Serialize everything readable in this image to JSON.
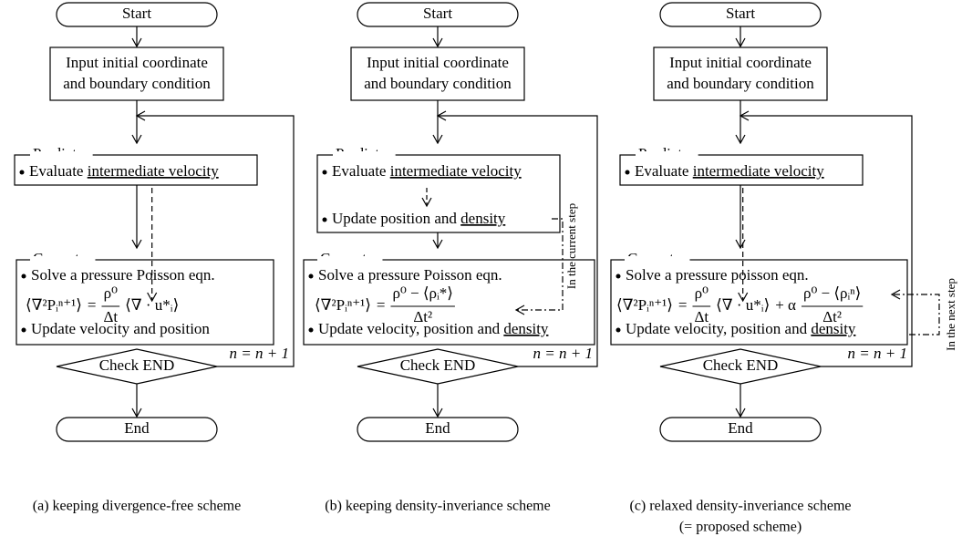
{
  "columns": [
    {
      "start": "Start",
      "input": [
        "Input initial coordinate",
        "and boundary condition"
      ],
      "predictor": {
        "label": "Predictor",
        "items": [
          {
            "text": "Evaluate ",
            "underline": "intermediate velocity"
          }
        ]
      },
      "corrector": {
        "label": "Corrector",
        "items": [
          {
            "text": "Solve a pressure Poisson eqn."
          },
          {
            "text": "Update velocity and position"
          }
        ],
        "equation": {
          "lhs": "⟨∇²Pᵢⁿ⁺¹⟩",
          "eq": "=",
          "terms": [
            {
              "num": "ρ⁰",
              "den": "Δt"
            },
            {
              "text": "⟨∇ · u*ᵢ⟩"
            }
          ]
        }
      },
      "check": "Check END",
      "loop": "n = n + 1",
      "end": "End",
      "caption": [
        "(a) keeping divergence-free scheme"
      ]
    },
    {
      "start": "Start",
      "input": [
        "Input initial coordinate",
        "and boundary condition"
      ],
      "predictor": {
        "label": "Predictor",
        "items": [
          {
            "text": "Evaluate ",
            "underline": "intermediate velocity"
          },
          {
            "text": "Update position and ",
            "underline": "density"
          }
        ]
      },
      "corrector": {
        "label": "Corrector",
        "items": [
          {
            "text": "Solve a pressure Poisson eqn."
          },
          {
            "text": "Update velocity, position and ",
            "underline": "density"
          }
        ],
        "equation": {
          "lhs": "⟨∇²Pᵢⁿ⁺¹⟩",
          "eq": "=",
          "terms": [
            {
              "num": "ρ⁰ − ⟨ρᵢ*⟩",
              "den": "Δt²"
            }
          ]
        }
      },
      "check": "Check END",
      "loop": "n = n + 1",
      "end": "End",
      "note": "In the current step",
      "caption": [
        "(b) keeping density-inveriance scheme"
      ]
    },
    {
      "start": "Start",
      "input": [
        "Input initial coordinate",
        "and boundary condition"
      ],
      "predictor": {
        "label": "Predictor",
        "items": [
          {
            "text": "Evaluate ",
            "underline": "intermediate velocity"
          }
        ]
      },
      "corrector": {
        "label": "Corrector",
        "items": [
          {
            "text": "Solve a pressure poisson eqn."
          },
          {
            "text": "Update velocity, position and ",
            "underline": "density"
          }
        ],
        "equation": {
          "lhs": "⟨∇²Pᵢⁿ⁺¹⟩",
          "eq": "=",
          "terms": [
            {
              "num": "ρ⁰",
              "den": "Δt"
            },
            {
              "text": "⟨∇ · u*ᵢ⟩"
            },
            {
              "text": "+ α"
            },
            {
              "num": "ρ⁰ − ⟨ρᵢⁿ⟩",
              "den": "Δt²"
            }
          ]
        }
      },
      "check": "Check END",
      "loop": "n = n + 1",
      "end": "End",
      "note": "In the next step",
      "caption": [
        "(c) relaxed density-inveriance scheme",
        "(= proposed scheme)"
      ]
    }
  ]
}
